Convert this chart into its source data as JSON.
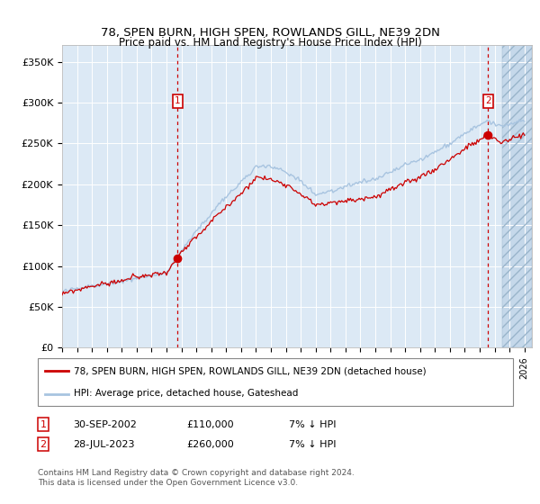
{
  "title": "78, SPEN BURN, HIGH SPEN, ROWLANDS GILL, NE39 2DN",
  "subtitle": "Price paid vs. HM Land Registry's House Price Index (HPI)",
  "ylabel_ticks": [
    "£0",
    "£50K",
    "£100K",
    "£150K",
    "£200K",
    "£250K",
    "£300K",
    "£350K"
  ],
  "ylim": [
    0,
    370000
  ],
  "xlim_start": 1995.0,
  "xlim_end": 2026.5,
  "marker1_date": 2002.75,
  "marker1_label": "1",
  "marker1_price": 110000,
  "marker2_date": 2023.57,
  "marker2_label": "2",
  "marker2_price": 260000,
  "legend_line1": "78, SPEN BURN, HIGH SPEN, ROWLANDS GILL, NE39 2DN (detached house)",
  "legend_line2": "HPI: Average price, detached house, Gateshead",
  "footnote": "Contains HM Land Registry data © Crown copyright and database right 2024.\nThis data is licensed under the Open Government Licence v3.0.",
  "hpi_color": "#a8c4e0",
  "price_color": "#cc0000",
  "bg_color": "#dce9f5",
  "marker_box_color": "#cc0000",
  "dashed_color": "#cc0000",
  "hatch_start": 2024.5
}
